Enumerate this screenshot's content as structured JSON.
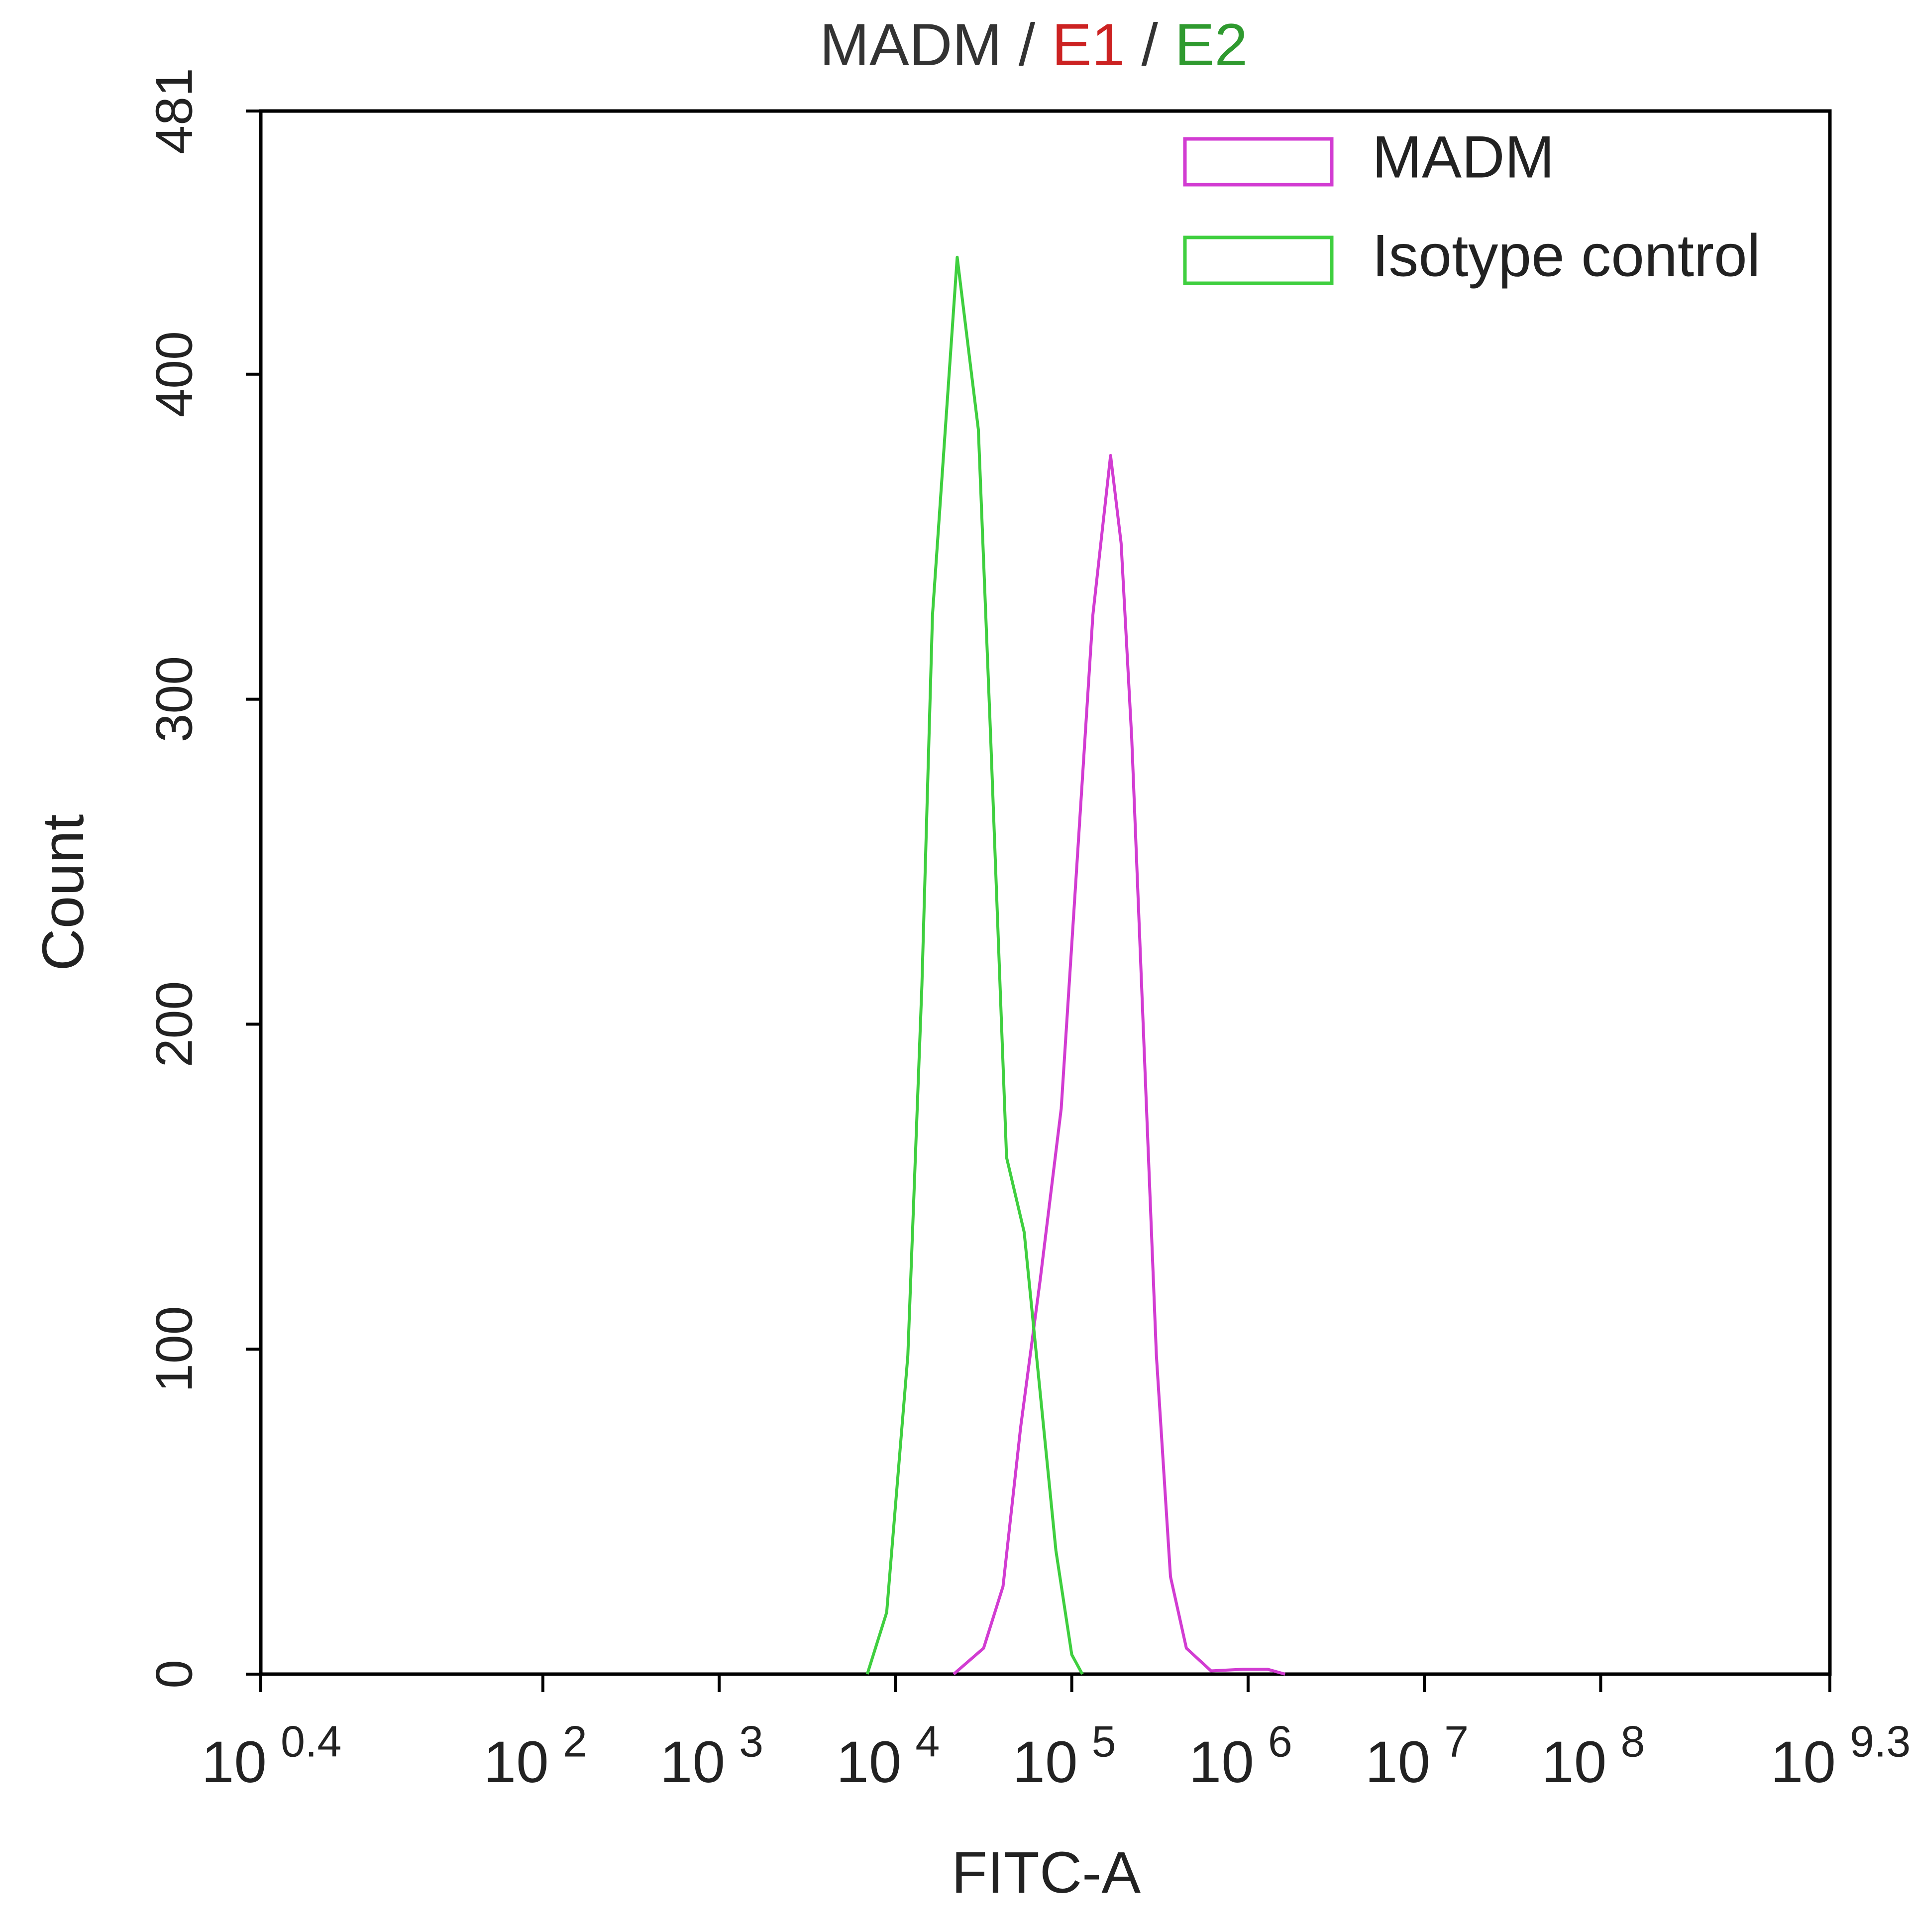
{
  "chart_data": {
    "type": "line",
    "title_parts": [
      {
        "text": "MADM",
        "color": "#333333"
      },
      {
        "text": " / ",
        "color": "#333333"
      },
      {
        "text": "E1",
        "color": "#cc2222"
      },
      {
        "text": " / ",
        "color": "#333333"
      },
      {
        "text": "E2",
        "color": "#2f9a2f"
      }
    ],
    "x_label": "FITC-A",
    "y_label": "Count",
    "xscale": "log",
    "xlim": [
      2.512,
      1995262315
    ],
    "xticks": [
      {
        "value": 2.512,
        "label": {
          "base": "10",
          "exponent": "0.4"
        }
      },
      {
        "value": 100,
        "label": {
          "base": "10",
          "exponent": "2"
        }
      },
      {
        "value": 1000,
        "label": {
          "base": "10",
          "exponent": "3"
        }
      },
      {
        "value": 10000,
        "label": {
          "base": "10",
          "exponent": "4"
        }
      },
      {
        "value": 100000,
        "label": {
          "base": "10",
          "exponent": "5"
        }
      },
      {
        "value": 1000000,
        "label": {
          "base": "10",
          "exponent": "6"
        }
      },
      {
        "value": 10000000,
        "label": {
          "base": "10",
          "exponent": "7"
        }
      },
      {
        "value": 100000000,
        "label": {
          "base": "10",
          "exponent": "8"
        }
      },
      {
        "value": 1995262315,
        "label": {
          "base": "10",
          "exponent": "9.3"
        }
      }
    ],
    "ylim": [
      0,
      481
    ],
    "yticks": [
      0,
      100,
      200,
      300,
      400,
      481
    ],
    "legend": "upper right",
    "series": [
      {
        "name": "MADM",
        "color": "#d23cd2",
        "x": [
          21380,
          31623,
          40738,
          51286,
          66069,
          87096,
          107152,
          131826,
          165959,
          190546,
          218776,
          257040,
          301995,
          363078,
          446684,
          616595,
          933254,
          1288250,
          1621810
        ],
        "values": [
          0,
          8,
          27,
          76,
          121,
          174,
          250,
          326,
          375,
          348,
          288,
          193,
          98,
          30,
          8,
          1,
          1.5,
          1.5,
          0
        ]
      },
      {
        "name": "Isotype control",
        "color": "#3fcf3f",
        "x": [
          6918,
          8913,
          11749,
          14125,
          16218,
          22387,
          29512,
          34674,
          42658,
          53703,
          66069,
          81283,
          100000,
          114815
        ],
        "values": [
          0,
          19,
          98,
          212,
          326,
          436,
          383,
          288,
          159,
          136,
          87,
          38,
          6,
          0
        ]
      }
    ]
  }
}
